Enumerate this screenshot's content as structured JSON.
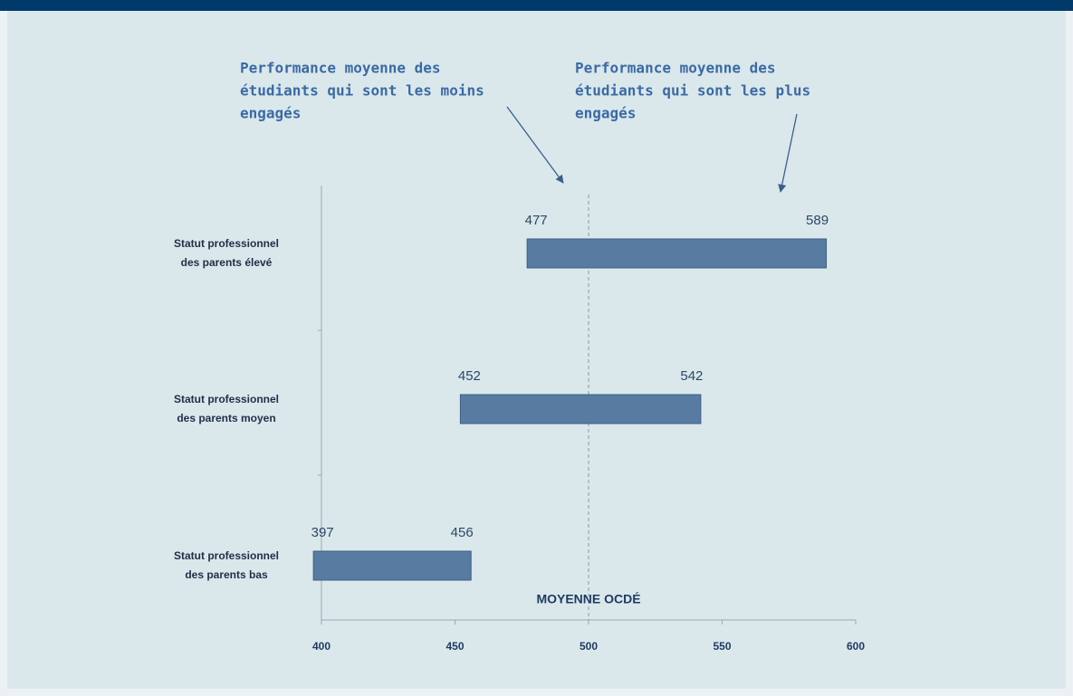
{
  "chart_data": {
    "type": "range_bar",
    "categories": [
      "Statut professionnel des parents élevé",
      "Statut professionnel des parents moyen",
      "Statut professionnel des parents bas"
    ],
    "low": [
      477,
      452,
      397
    ],
    "high": [
      589,
      542,
      456
    ],
    "color": "#587ba1",
    "xlim": [
      400,
      600
    ],
    "xticks": [
      400,
      450,
      500,
      550,
      600
    ],
    "reference": {
      "value": 500,
      "label": "MOYENNE OCDÉ"
    },
    "annotations": [
      [
        "Performance moyenne des",
        "étudiants qui sont les moins",
        "engagés"
      ],
      [
        "Performance moyenne des",
        "étudiants qui sont les plus",
        "engagés"
      ]
    ]
  }
}
